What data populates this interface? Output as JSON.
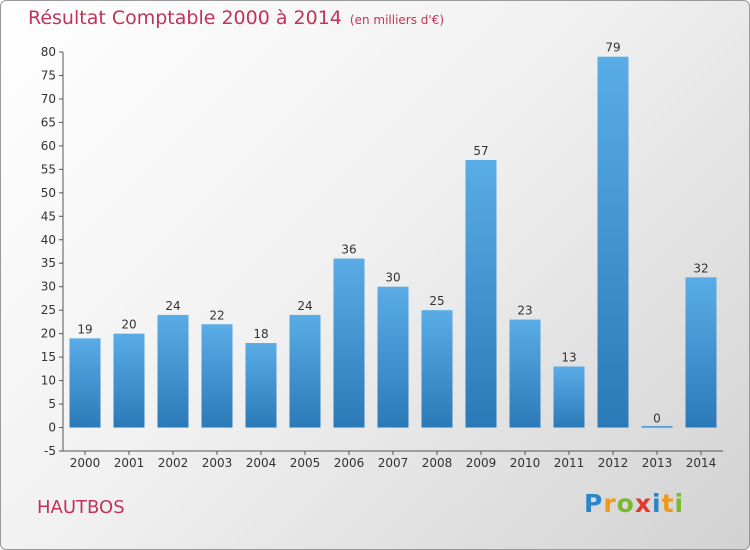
{
  "chart_data": {
    "type": "bar",
    "title": "Résultat Comptable 2000 à 2014",
    "subtitle": "(en milliers d'€)",
    "xlabel": "",
    "ylabel": "",
    "categories": [
      "2000",
      "2001",
      "2002",
      "2003",
      "2004",
      "2005",
      "2006",
      "2007",
      "2008",
      "2009",
      "2010",
      "2011",
      "2012",
      "2013",
      "2014"
    ],
    "values": [
      19,
      20,
      24,
      22,
      18,
      24,
      36,
      30,
      25,
      57,
      23,
      13,
      79,
      0,
      32
    ],
    "ylim": [
      -5,
      80
    ],
    "yticks": [
      -5,
      0,
      5,
      10,
      15,
      20,
      25,
      30,
      35,
      40,
      45,
      50,
      55,
      60,
      65,
      70,
      75,
      80
    ],
    "grid": false,
    "legend": "none",
    "colors": {
      "bar_top": "#5aace6",
      "bar_bottom": "#2a7ab8",
      "title": "#c0345a"
    }
  },
  "commune": "HAUTBOS",
  "logo": {
    "letters": [
      "P",
      "r",
      "o",
      "x",
      "i",
      "t",
      "i"
    ],
    "colors": [
      "#2a86c8",
      "#f09a1c",
      "#7cb82f",
      "#e03a2a",
      "#2a86c8",
      "#f09a1c",
      "#7cb82f"
    ]
  }
}
